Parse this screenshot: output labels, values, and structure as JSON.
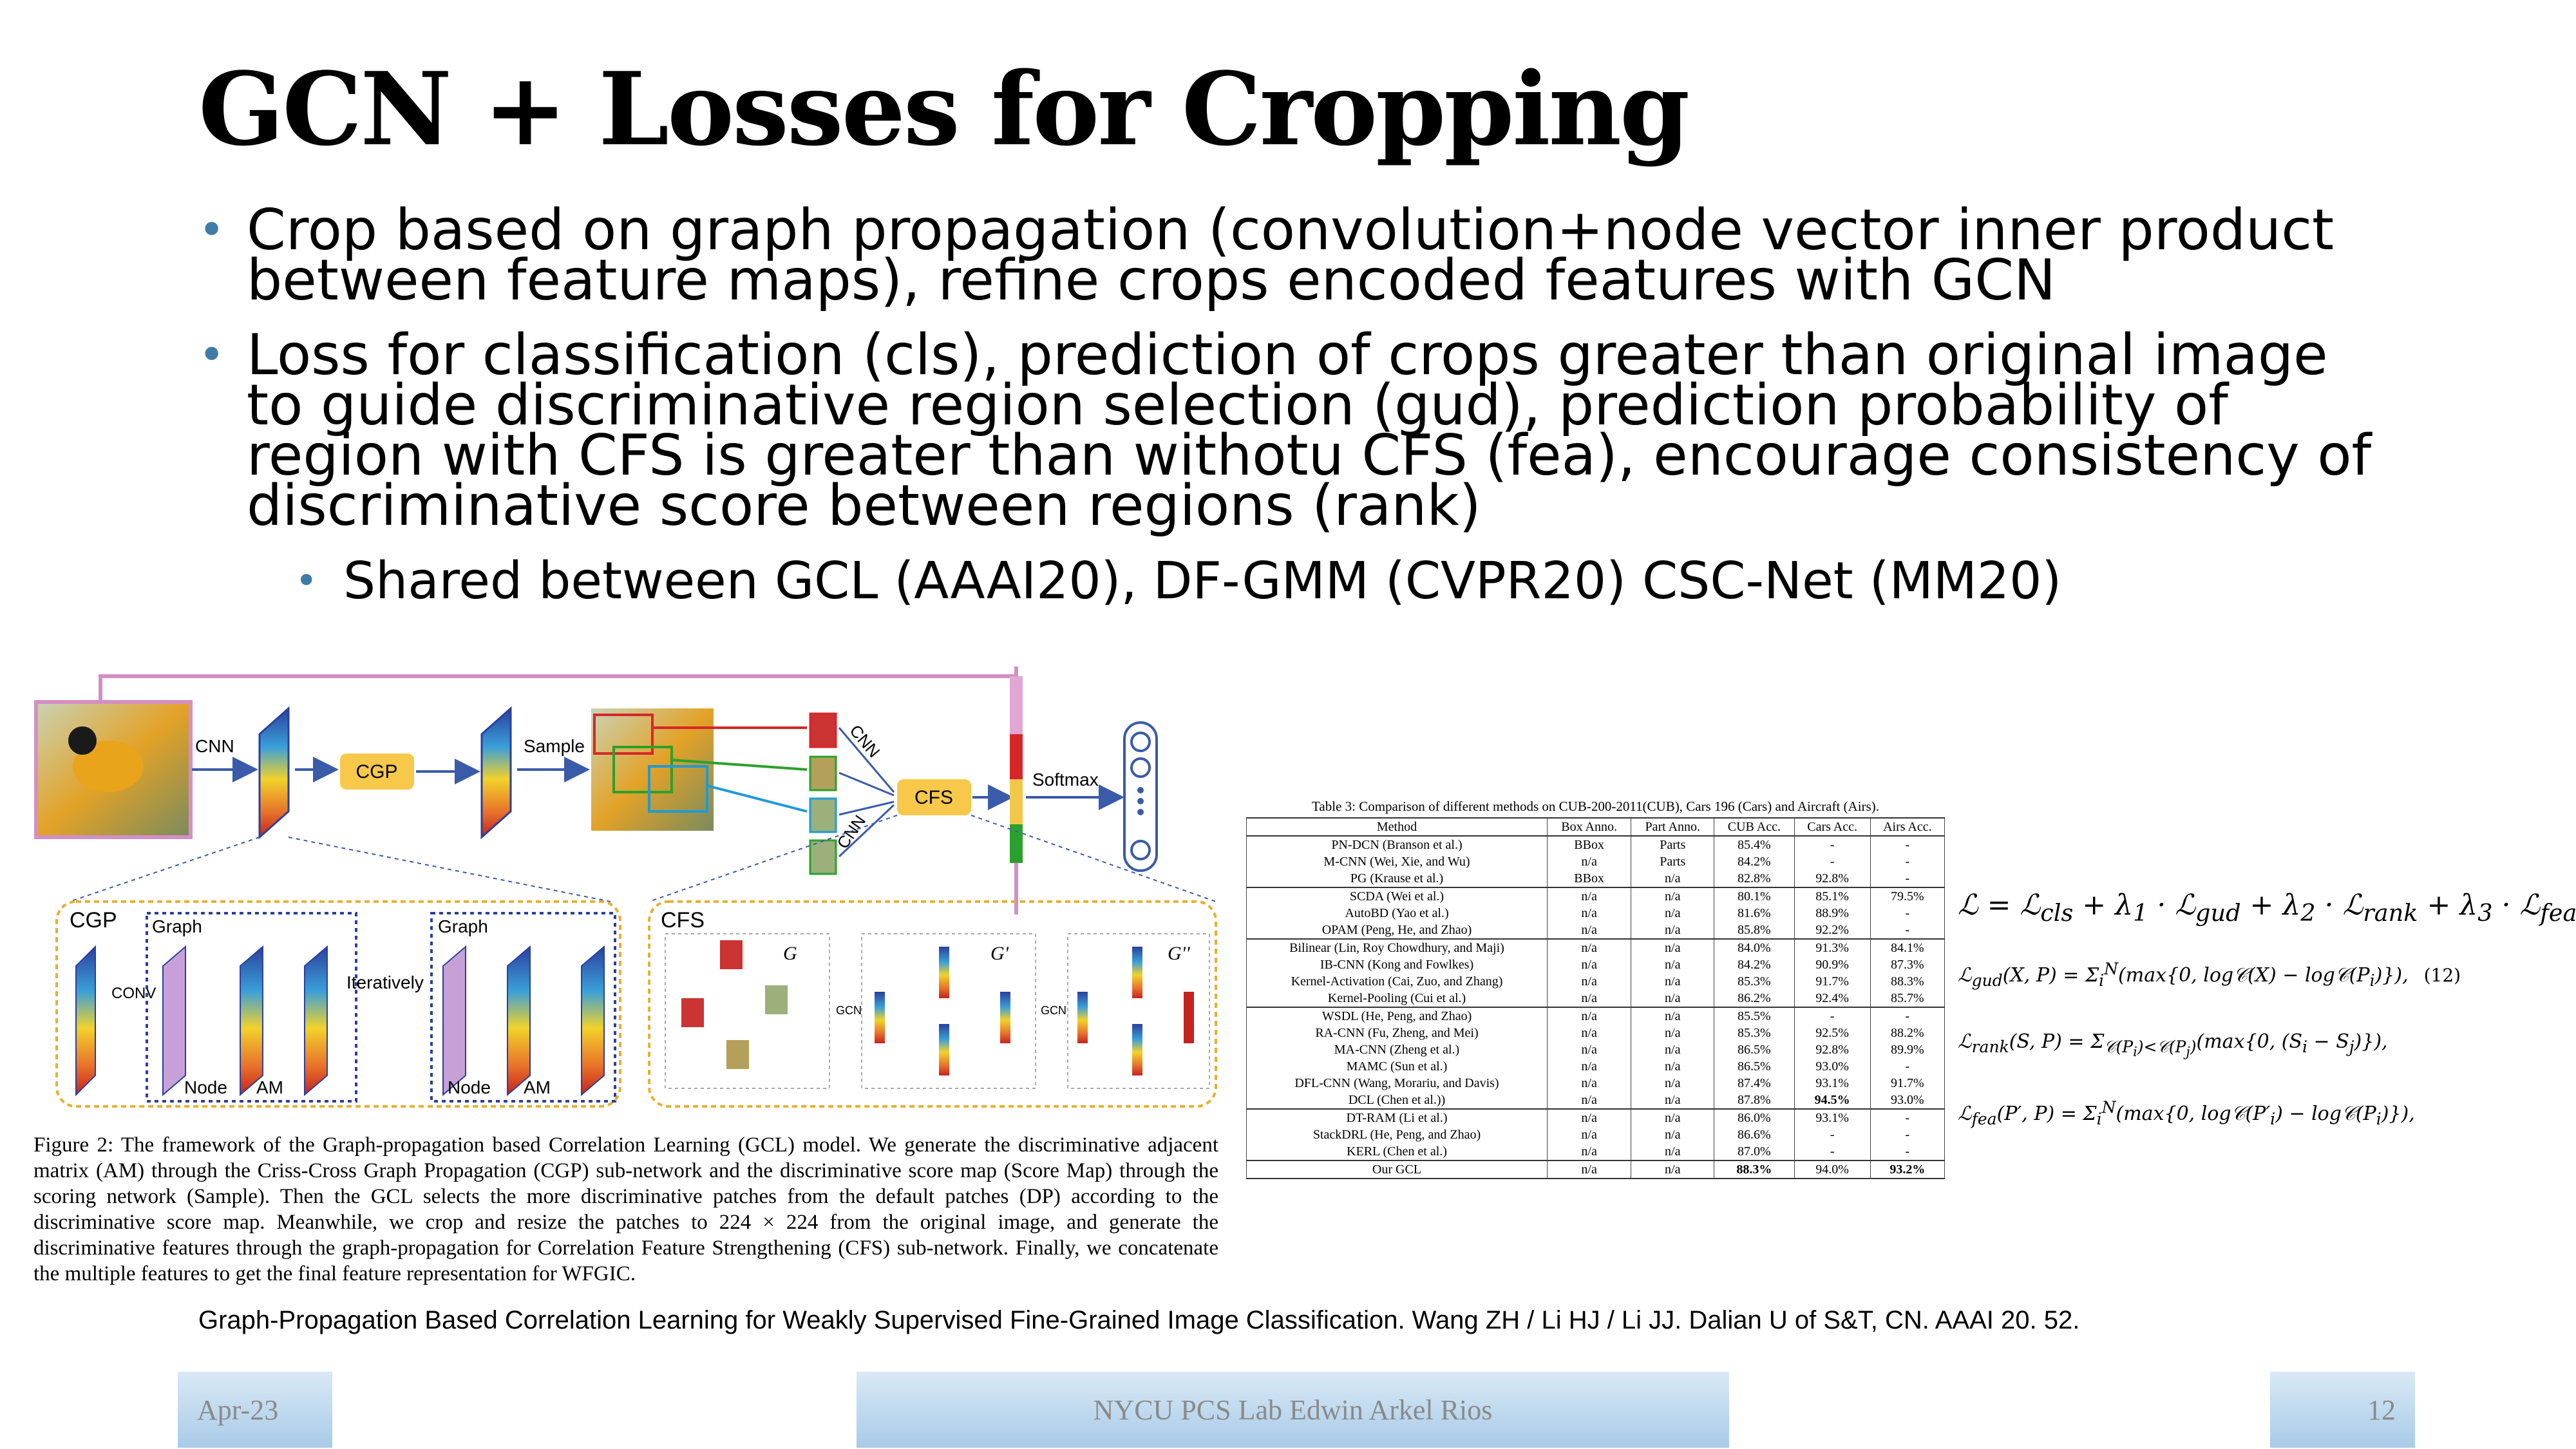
{
  "slide": {
    "title": "GCN + Losses for Cropping",
    "bullets": [
      "Crop based on graph propagation (convolution+node vector inner product between feature maps), refine crops encoded features with GCN",
      "Loss for classification (cls), prediction of crops greater than original image to guide discriminative region selection (gud), prediction probability of region with CFS is greater than withotu CFS (fea), encourage consistency of discriminative score between regions (rank)"
    ],
    "sub_bullet": "Shared between GCL (AAAI20), DF-GMM (CVPR20) CSC-Net (MM20)"
  },
  "figure": {
    "labels": {
      "cnn": "CNN",
      "cgp": "CGP",
      "sample": "Sample",
      "cfs": "CFS",
      "softmax": "Softmax",
      "cnn_up": "CNN",
      "cnn_down": "CNN",
      "cgp_panel": "CGP",
      "cfs_panel": "CFS",
      "graph1": "Graph",
      "graph2": "Graph",
      "conv": "CONV",
      "iteratively": "Iteratively",
      "node1": "Node",
      "am1": "AM",
      "node2": "Node",
      "am2": "AM",
      "g": "G",
      "g1": "G'",
      "g2": "G''",
      "gcn1": "GCN",
      "gcn2": "GCN"
    },
    "caption": "Figure 2: The framework of the Graph-propagation based Correlation Learning (GCL) model. We generate the discriminative adjacent matrix (AM) through the Criss-Cross Graph Propagation (CGP) sub-network and the discriminative score map (Score Map) through the scoring network (Sample). Then the GCL selects the more discriminative patches from the default patches (DP) according to the discriminative score map. Meanwhile, we crop and resize the patches to 224 × 224 from the original image, and generate the discriminative features through the graph-propagation for Correlation Feature Strengthening (CFS) sub-network. Finally, we concatenate the multiple features to get the final feature representation for WFGIC."
  },
  "table": {
    "caption": "Table 3: Comparison of different methods on CUB-200-2011(CUB), Cars 196 (Cars) and Aircraft (Airs).",
    "headers": [
      "Method",
      "Box Anno.",
      "Part Anno.",
      "CUB Acc.",
      "Cars Acc.",
      "Airs Acc."
    ],
    "rows": [
      [
        "PN-DCN (Branson et al.)",
        "BBox",
        "Parts",
        "85.4%",
        "-",
        "-"
      ],
      [
        "M-CNN (Wei, Xie, and Wu)",
        "n/a",
        "Parts",
        "84.2%",
        "-",
        "-"
      ],
      [
        "PG (Krause et al.)",
        "BBox",
        "n/a",
        "82.8%",
        "92.8%",
        "-"
      ],
      [
        "SCDA (Wei et al.)",
        "n/a",
        "n/a",
        "80.1%",
        "85.1%",
        "79.5%"
      ],
      [
        "AutoBD (Yao et al.)",
        "n/a",
        "n/a",
        "81.6%",
        "88.9%",
        "-"
      ],
      [
        "OPAM (Peng, He, and Zhao)",
        "n/a",
        "n/a",
        "85.8%",
        "92.2%",
        "-"
      ],
      [
        "Bilinear (Lin, Roy Chowdhury, and Maji)",
        "n/a",
        "n/a",
        "84.0%",
        "91.3%",
        "84.1%"
      ],
      [
        "IB-CNN (Kong and Fowlkes)",
        "n/a",
        "n/a",
        "84.2%",
        "90.9%",
        "87.3%"
      ],
      [
        "Kernel-Activation (Cai, Zuo, and Zhang)",
        "n/a",
        "n/a",
        "85.3%",
        "91.7%",
        "88.3%"
      ],
      [
        "Kernel-Pooling (Cui et al.)",
        "n/a",
        "n/a",
        "86.2%",
        "92.4%",
        "85.7%"
      ],
      [
        "WSDL (He, Peng, and Zhao)",
        "n/a",
        "n/a",
        "85.5%",
        "-",
        "-"
      ],
      [
        "RA-CNN (Fu, Zheng, and Mei)",
        "n/a",
        "n/a",
        "85.3%",
        "92.5%",
        "88.2%"
      ],
      [
        "MA-CNN (Zheng et al.)",
        "n/a",
        "n/a",
        "86.5%",
        "92.8%",
        "89.9%"
      ],
      [
        "MAMC (Sun et al.)",
        "n/a",
        "n/a",
        "86.5%",
        "93.0%",
        "-"
      ],
      [
        "DFL-CNN (Wang, Morariu, and Davis)",
        "n/a",
        "n/a",
        "87.4%",
        "93.1%",
        "91.7%"
      ],
      [
        "DCL (Chen et al.))",
        "n/a",
        "n/a",
        "87.8%",
        "94.5%",
        "93.0%"
      ],
      [
        "DT-RAM (Li et al.)",
        "n/a",
        "n/a",
        "86.0%",
        "93.1%",
        "-"
      ],
      [
        "StackDRL (He, Peng, and Zhao)",
        "n/a",
        "n/a",
        "86.6%",
        "-",
        "-"
      ],
      [
        "KERL (Chen et al.)",
        "n/a",
        "n/a",
        "87.0%",
        "-",
        "-"
      ],
      [
        "Our GCL",
        "n/a",
        "n/a",
        "88.3%",
        "94.0%",
        "93.2%"
      ]
    ]
  },
  "equations": {
    "eq_number": "(12)"
  },
  "citation": "Graph-Propagation Based Correlation Learning for Weakly Supervised Fine-Grained Image Classification. Wang ZH / Li HJ / Li JJ. Dalian U of S&T, CN. AAAI 20. 52.",
  "footer": {
    "date": "Apr-23",
    "center": "NYCU PCS Lab Edwin Arkel Rios",
    "page": "12"
  }
}
